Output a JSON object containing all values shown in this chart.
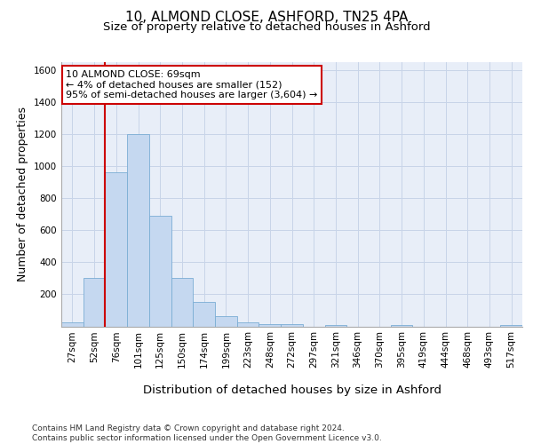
{
  "title_line1": "10, ALMOND CLOSE, ASHFORD, TN25 4PA",
  "title_line2": "Size of property relative to detached houses in Ashford",
  "xlabel": "Distribution of detached houses by size in Ashford",
  "ylabel": "Number of detached properties",
  "categories": [
    "27sqm",
    "52sqm",
    "76sqm",
    "101sqm",
    "125sqm",
    "150sqm",
    "174sqm",
    "199sqm",
    "223sqm",
    "248sqm",
    "272sqm",
    "297sqm",
    "321sqm",
    "346sqm",
    "370sqm",
    "395sqm",
    "419sqm",
    "444sqm",
    "468sqm",
    "493sqm",
    "517sqm"
  ],
  "bar_values": [
    25,
    300,
    960,
    1200,
    690,
    300,
    150,
    65,
    25,
    15,
    15,
    0,
    10,
    0,
    0,
    10,
    0,
    0,
    0,
    0,
    10
  ],
  "bar_color": "#c5d8f0",
  "bar_edge_color": "#7aadd4",
  "grid_color": "#c8d4e8",
  "background_color": "#e8eef8",
  "vline_color": "#cc0000",
  "vline_pos": 1.5,
  "annotation_text": "10 ALMOND CLOSE: 69sqm\n← 4% of detached houses are smaller (152)\n95% of semi-detached houses are larger (3,604) →",
  "annotation_box_facecolor": "#ffffff",
  "annotation_box_edgecolor": "#cc0000",
  "ylim": [
    0,
    1650
  ],
  "yticks": [
    0,
    200,
    400,
    600,
    800,
    1000,
    1200,
    1400,
    1600
  ],
  "footer_text": "Contains HM Land Registry data © Crown copyright and database right 2024.\nContains public sector information licensed under the Open Government Licence v3.0.",
  "title_fontsize": 11,
  "subtitle_fontsize": 9.5,
  "axis_label_fontsize": 9,
  "tick_fontsize": 7.5,
  "annotation_fontsize": 8,
  "footer_fontsize": 6.5
}
